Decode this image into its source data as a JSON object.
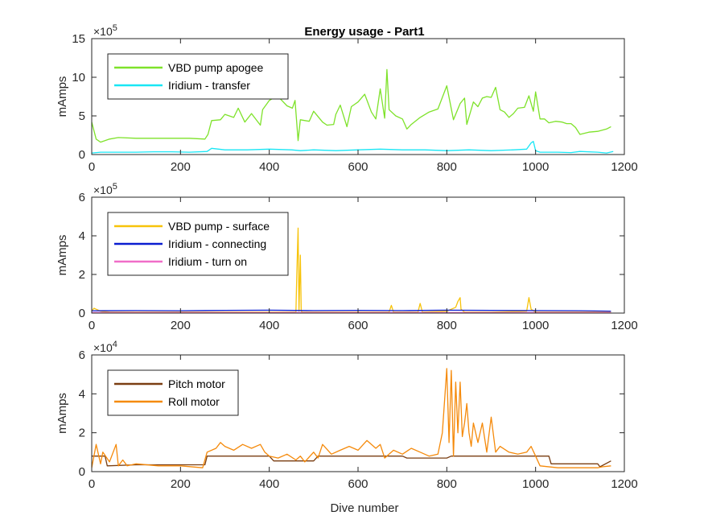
{
  "figure": {
    "title": "Energy usage - Part1",
    "xlabel": "Dive number",
    "background": "#ffffff",
    "axis_color": "#262626",
    "legend_border": "#262626"
  },
  "chart_data": [
    {
      "type": "line",
      "title": "Energy usage - Part1",
      "xlabel": "",
      "ylabel": "mAmps",
      "exponent_label": "×10",
      "exponent_power": "5",
      "xlim": [
        0,
        1200
      ],
      "ylim": [
        0,
        15
      ],
      "xticks": [
        0,
        200,
        400,
        600,
        800,
        1000,
        1200
      ],
      "yticks": [
        0,
        5,
        10,
        15
      ],
      "grid": false,
      "legend_position": "top-left",
      "series": [
        {
          "name": "VBD pump apogee",
          "color": "#7ee22a",
          "width": 1.3,
          "x": [
            0,
            10,
            20,
            40,
            60,
            100,
            140,
            180,
            220,
            255,
            262,
            270,
            290,
            300,
            320,
            330,
            345,
            360,
            380,
            385,
            400,
            415,
            425,
            440,
            452,
            458,
            465,
            470,
            490,
            500,
            520,
            530,
            545,
            550,
            560,
            575,
            585,
            600,
            615,
            630,
            640,
            650,
            660,
            665,
            670,
            685,
            700,
            710,
            720,
            740,
            760,
            780,
            800,
            815,
            830,
            840,
            845,
            860,
            870,
            880,
            890,
            900,
            910,
            920,
            930,
            940,
            950,
            960,
            975,
            985,
            995,
            1000,
            1010,
            1020,
            1030,
            1045,
            1060,
            1070,
            1080,
            1090,
            1100,
            1120,
            1140,
            1160,
            1170
          ],
          "y": [
            4.2,
            2.0,
            1.6,
            2.0,
            2.2,
            2.1,
            2.1,
            2.1,
            2.1,
            2.0,
            2.6,
            4.4,
            4.5,
            5.2,
            4.8,
            6.0,
            4.2,
            5.3,
            3.8,
            5.8,
            7.0,
            7.5,
            7.2,
            6.3,
            6.0,
            7.0,
            1.8,
            4.5,
            4.3,
            5.6,
            4.2,
            3.8,
            3.9,
            5.2,
            6.4,
            3.6,
            6.2,
            6.8,
            7.8,
            5.5,
            4.6,
            8.5,
            4.7,
            11.0,
            5.8,
            5.0,
            4.6,
            3.3,
            3.9,
            4.8,
            5.5,
            5.9,
            8.9,
            4.5,
            6.6,
            7.3,
            3.9,
            6.8,
            6.2,
            7.3,
            7.5,
            7.4,
            8.7,
            5.8,
            5.5,
            4.8,
            5.3,
            6.0,
            6.1,
            7.6,
            5.6,
            8.1,
            4.6,
            4.6,
            4.1,
            4.3,
            4.2,
            4.0,
            4.0,
            3.5,
            2.6,
            2.9,
            3.0,
            3.3,
            3.6
          ]
        },
        {
          "name": "Iridium - transfer",
          "color": "#19e6f5",
          "width": 1.3,
          "x": [
            0,
            20,
            60,
            100,
            140,
            180,
            220,
            260,
            270,
            300,
            350,
            400,
            450,
            470,
            500,
            550,
            600,
            650,
            700,
            750,
            800,
            850,
            900,
            950,
            980,
            990,
            995,
            1000,
            1010,
            1050,
            1080,
            1100,
            1140,
            1160,
            1175
          ],
          "y": [
            0.2,
            0.3,
            0.3,
            0.3,
            0.35,
            0.35,
            0.3,
            0.4,
            0.8,
            0.6,
            0.6,
            0.7,
            0.6,
            0.5,
            0.6,
            0.5,
            0.6,
            0.7,
            0.6,
            0.6,
            0.5,
            0.6,
            0.5,
            0.6,
            0.7,
            1.5,
            1.7,
            0.5,
            0.3,
            0.3,
            0.25,
            0.4,
            0.3,
            0.2,
            0.4
          ]
        }
      ]
    },
    {
      "type": "line",
      "title": "",
      "xlabel": "",
      "ylabel": "mAmps",
      "exponent_label": "×10",
      "exponent_power": "5",
      "xlim": [
        0,
        1200
      ],
      "ylim": [
        0,
        6
      ],
      "xticks": [
        0,
        200,
        400,
        600,
        800,
        1000,
        1200
      ],
      "yticks": [
        0,
        2,
        4,
        6
      ],
      "grid": false,
      "legend_position": "top-left",
      "series": [
        {
          "name": "VBD pump - surface",
          "color": "#f7c30a",
          "width": 1.3,
          "x": [
            0,
            5,
            10,
            20,
            40,
            100,
            200,
            300,
            400,
            460,
            462,
            465,
            467,
            470,
            472,
            475,
            480,
            500,
            600,
            670,
            675,
            680,
            700,
            735,
            740,
            745,
            800,
            820,
            825,
            830,
            832,
            840,
            900,
            980,
            985,
            990,
            1000,
            1100,
            1170
          ],
          "y": [
            0.1,
            0.25,
            0.2,
            0.1,
            0.05,
            0.05,
            0.05,
            0.05,
            0.05,
            0.05,
            2.0,
            4.4,
            0.1,
            3.0,
            0.1,
            0.05,
            0.05,
            0.05,
            0.05,
            0.05,
            0.4,
            0.05,
            0.05,
            0.05,
            0.5,
            0.05,
            0.1,
            0.3,
            0.6,
            0.8,
            0.2,
            0.05,
            0.05,
            0.1,
            0.8,
            0.2,
            0.05,
            0.05,
            0.05
          ]
        },
        {
          "name": "Iridium - connecting",
          "color": "#0a1ed0",
          "width": 1.3,
          "x": [
            0,
            100,
            200,
            300,
            400,
            500,
            600,
            700,
            800,
            900,
            1000,
            1100,
            1170
          ],
          "y": [
            0.12,
            0.13,
            0.12,
            0.14,
            0.15,
            0.13,
            0.14,
            0.13,
            0.15,
            0.14,
            0.13,
            0.12,
            0.1
          ]
        },
        {
          "name": "Iridium - turn on",
          "color": "#f06ec8",
          "width": 1.3,
          "x": [
            0,
            300,
            600,
            900,
            1170
          ],
          "y": [
            0.03,
            0.03,
            0.03,
            0.03,
            0.03
          ]
        }
      ]
    },
    {
      "type": "line",
      "title": "",
      "xlabel": "Dive number",
      "ylabel": "mAmps",
      "exponent_label": "×10",
      "exponent_power": "4",
      "xlim": [
        0,
        1200
      ],
      "ylim": [
        0,
        6
      ],
      "xticks": [
        0,
        200,
        400,
        600,
        800,
        1000,
        1200
      ],
      "yticks": [
        0,
        2,
        4,
        6
      ],
      "grid": false,
      "legend_position": "top-left",
      "series": [
        {
          "name": "Pitch motor",
          "color": "#7a3e12",
          "width": 1.3,
          "x": [
            0,
            30,
            35,
            100,
            200,
            255,
            260,
            400,
            410,
            500,
            510,
            700,
            710,
            800,
            810,
            1000,
            1030,
            1035,
            1140,
            1145,
            1170
          ],
          "y": [
            0.8,
            0.8,
            0.3,
            0.35,
            0.35,
            0.35,
            0.8,
            0.8,
            0.55,
            0.55,
            0.8,
            0.8,
            0.7,
            0.7,
            0.8,
            0.8,
            0.8,
            0.4,
            0.4,
            0.25,
            0.55
          ]
        },
        {
          "name": "Roll motor",
          "color": "#f58a0b",
          "width": 1.3,
          "x": [
            0,
            10,
            20,
            25,
            40,
            55,
            60,
            70,
            80,
            100,
            150,
            200,
            250,
            260,
            280,
            290,
            300,
            320,
            340,
            360,
            380,
            390,
            400,
            420,
            440,
            460,
            470,
            480,
            500,
            510,
            520,
            540,
            560,
            580,
            600,
            620,
            640,
            650,
            660,
            680,
            700,
            720,
            740,
            760,
            780,
            790,
            800,
            805,
            810,
            815,
            820,
            825,
            830,
            835,
            840,
            845,
            850,
            855,
            860,
            870,
            880,
            890,
            900,
            910,
            920,
            940,
            960,
            980,
            990,
            1000,
            1010,
            1050,
            1100,
            1140,
            1150,
            1170
          ],
          "y": [
            0.2,
            1.4,
            0.4,
            1.0,
            0.5,
            1.4,
            0.3,
            0.6,
            0.3,
            0.4,
            0.3,
            0.3,
            0.2,
            1.0,
            1.2,
            1.5,
            1.3,
            1.1,
            1.4,
            1.2,
            1.4,
            1.0,
            0.8,
            0.7,
            0.9,
            0.6,
            0.8,
            0.5,
            1.0,
            0.7,
            1.4,
            0.9,
            1.1,
            1.3,
            1.1,
            1.6,
            1.2,
            1.4,
            0.7,
            1.1,
            0.9,
            1.2,
            1.0,
            0.8,
            0.9,
            2.0,
            5.3,
            1.5,
            5.2,
            0.8,
            4.6,
            2.0,
            4.6,
            1.8,
            2.5,
            3.5,
            2.0,
            1.3,
            2.5,
            1.5,
            2.5,
            1.0,
            2.8,
            1.0,
            1.3,
            1.0,
            0.9,
            1.0,
            1.3,
            0.8,
            0.3,
            0.2,
            0.2,
            0.2,
            0.25,
            0.3
          ]
        }
      ]
    }
  ]
}
